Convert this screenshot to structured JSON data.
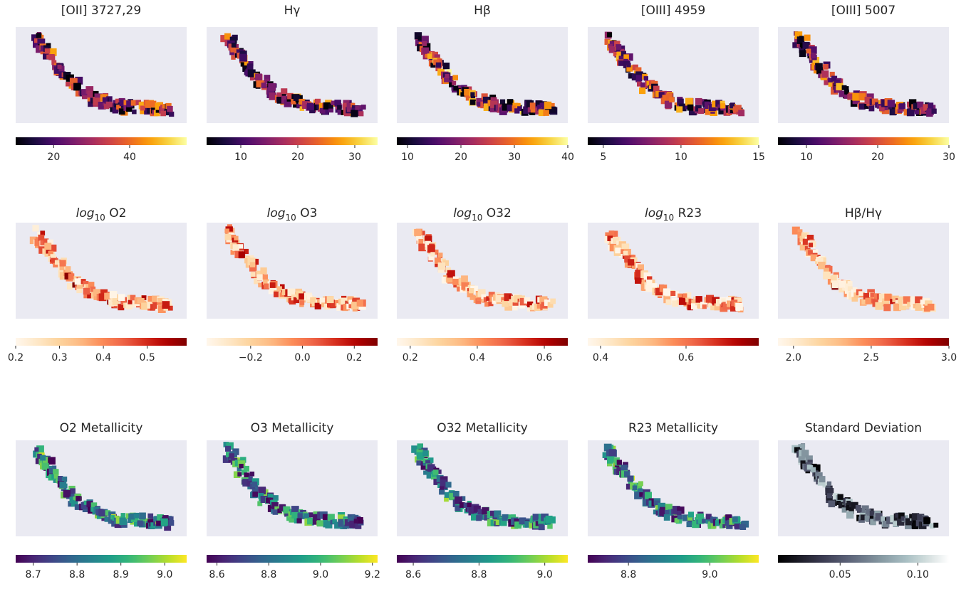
{
  "chart_data": {
    "type": "heatmap",
    "layout": "3 rows x 5 columns of emission-line maps with horizontal colorbars",
    "object_shape": "curved elongated arc",
    "panels": [
      {
        "title": "[OII] 3727,29",
        "colormap": "inferno",
        "vmin": 10,
        "vmax": 55,
        "ticks": [
          20,
          40
        ],
        "tick_labels": [
          "20",
          "40"
        ]
      },
      {
        "title": "Hγ",
        "colormap": "inferno",
        "vmin": 4,
        "vmax": 34,
        "ticks": [
          10,
          20,
          30
        ],
        "tick_labels": [
          "10",
          "20",
          "30"
        ]
      },
      {
        "title": "Hβ",
        "colormap": "inferno",
        "vmin": 8,
        "vmax": 40,
        "ticks": [
          10,
          20,
          30,
          40
        ],
        "tick_labels": [
          "10",
          "20",
          "30",
          "40"
        ]
      },
      {
        "title": "[OIII] 4959",
        "colormap": "inferno",
        "vmin": 4,
        "vmax": 15,
        "ticks": [
          5,
          10,
          15
        ],
        "tick_labels": [
          "5",
          "10",
          "15"
        ]
      },
      {
        "title": "[OIII] 5007",
        "colormap": "inferno",
        "vmin": 6,
        "vmax": 30,
        "ticks": [
          10,
          20,
          30
        ],
        "tick_labels": [
          "10",
          "20",
          "30"
        ]
      },
      {
        "title_prefix": "log",
        "title_sub": "10",
        "title_suffix": " O2",
        "colormap": "orrd",
        "vmin": 0.2,
        "vmax": 0.59,
        "ticks": [
          0.2,
          0.3,
          0.4,
          0.5
        ],
        "tick_labels": [
          "0.2",
          "0.3",
          "0.4",
          "0.5"
        ]
      },
      {
        "title_prefix": "log",
        "title_sub": "10",
        "title_suffix": " O3",
        "colormap": "orrd",
        "vmin": -0.37,
        "vmax": 0.29,
        "ticks": [
          -0.2,
          0.0,
          0.2
        ],
        "tick_labels": [
          "−0.2",
          "0.0",
          "0.2"
        ]
      },
      {
        "title_prefix": "log",
        "title_sub": "10",
        "title_suffix": " O32",
        "colormap": "orrd",
        "vmin": 0.16,
        "vmax": 0.67,
        "ticks": [
          0.2,
          0.4,
          0.6
        ],
        "tick_labels": [
          "0.2",
          "0.4",
          "0.6"
        ]
      },
      {
        "title_prefix": "log",
        "title_sub": "10",
        "title_suffix": " R23",
        "colormap": "orrd",
        "vmin": 0.37,
        "vmax": 0.77,
        "ticks": [
          0.4,
          0.6
        ],
        "tick_labels": [
          "0.4",
          "0.6"
        ]
      },
      {
        "title": "Hβ/Hγ",
        "colormap": "orrd",
        "vmin": 1.9,
        "vmax": 3.0,
        "ticks": [
          2.0,
          2.5,
          3.0
        ],
        "tick_labels": [
          "2.0",
          "2.5",
          "3.0"
        ]
      },
      {
        "title": "O2 Metallicity",
        "colormap": "viridis",
        "vmin": 8.66,
        "vmax": 9.05,
        "ticks": [
          8.7,
          8.8,
          8.9,
          9.0
        ],
        "tick_labels": [
          "8.7",
          "8.8",
          "8.9",
          "9.0"
        ]
      },
      {
        "title": "O3 Metallicity",
        "colormap": "viridis",
        "vmin": 8.56,
        "vmax": 9.22,
        "ticks": [
          8.6,
          8.8,
          9.0,
          9.2
        ],
        "tick_labels": [
          "8.6",
          "8.8",
          "9.0",
          "9.2"
        ]
      },
      {
        "title": "O32 Metallicity",
        "colormap": "viridis",
        "vmin": 8.55,
        "vmax": 9.07,
        "ticks": [
          8.6,
          8.8,
          9.0
        ],
        "tick_labels": [
          "8.6",
          "8.8",
          "9.0"
        ]
      },
      {
        "title": "R23 Metallicity",
        "colormap": "viridis",
        "vmin": 8.7,
        "vmax": 9.12,
        "ticks": [
          8.8,
          9.0
        ],
        "tick_labels": [
          "8.8",
          "9.0"
        ]
      },
      {
        "title": "Standard Deviation",
        "colormap": "bone",
        "vmin": 0.01,
        "vmax": 0.12,
        "ticks": [
          0.05,
          0.1
        ],
        "tick_labels": [
          "0.05",
          "0.10"
        ]
      }
    ],
    "colors": {
      "axes_background": "#eaeaf2",
      "inferno": [
        "#000004",
        "#1b0c41",
        "#4a0c6b",
        "#781c6d",
        "#a52c60",
        "#cf4446",
        "#ed6925",
        "#fb9b06",
        "#f7d13d",
        "#fcffa4"
      ],
      "orrd": [
        "#fff7ec",
        "#fee8c8",
        "#fdd49e",
        "#fdbb84",
        "#fc8d59",
        "#ef6548",
        "#d7301f",
        "#b30000",
        "#7f0000"
      ],
      "viridis": [
        "#440154",
        "#482878",
        "#3e4989",
        "#31688e",
        "#26828e",
        "#1f9e89",
        "#35b779",
        "#6ece58",
        "#b5de2b",
        "#fde725"
      ],
      "bone": [
        "#000000",
        "#1c1c27",
        "#38384e",
        "#54586f",
        "#6f7b8b",
        "#8b9fa7",
        "#a9bfc3",
        "#d4dfdf",
        "#ffffff"
      ]
    }
  }
}
